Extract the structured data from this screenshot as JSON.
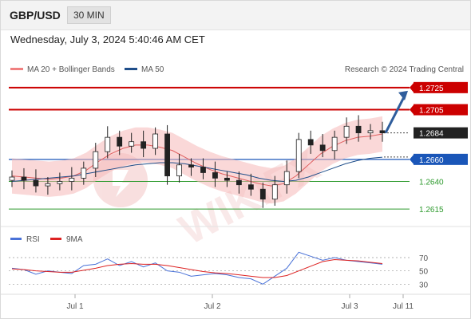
{
  "header": {
    "pair": "GBP/USD",
    "timeframe": "30 MIN"
  },
  "datetime": "Wednesday, July 3, 2024 5:40:46 AM CET",
  "legend": {
    "bollinger": "MA 20 + Bollinger Bands",
    "ma50": "MA 50",
    "copyright": "Research © 2024 Trading Central"
  },
  "watermark": "WIKIFX",
  "colors": {
    "resistance": "#cc0000",
    "support_blue": "#1a56b8",
    "support_green": "#2e9a2e",
    "price": "#222222",
    "bollinger": "#f08080",
    "ma50": "#1f4e8a",
    "rsi": "#4a72d8",
    "rsi_ma": "#dd2222",
    "arrow": "#2f5d9c"
  },
  "chart_data": [
    {
      "type": "line",
      "title": "",
      "ylim": [
        1.2605,
        1.2735
      ],
      "x_ticks": [
        "Jul 1",
        "Jul 2",
        "Jul 3",
        "Jul 11"
      ],
      "levels": [
        {
          "value": 1.2725,
          "label": "1.2725",
          "kind": "resistance"
        },
        {
          "value": 1.2705,
          "label": "1.2705",
          "kind": "resistance"
        },
        {
          "value": 1.2684,
          "label": "1.2684",
          "kind": "last_price"
        },
        {
          "value": 1.266,
          "label": "1.2660",
          "kind": "pivot"
        },
        {
          "value": 1.264,
          "label": "1.2640",
          "kind": "support"
        },
        {
          "value": 1.2615,
          "label": "1.2615",
          "kind": "support"
        }
      ],
      "series": [
        {
          "name": "MA 20 + Bollinger Bands",
          "values": [
            1.2645,
            1.2644,
            1.2643,
            1.2642,
            1.2643,
            1.2645,
            1.265,
            1.2658,
            1.2665,
            1.267,
            1.2673,
            1.2673,
            1.2671,
            1.2668,
            1.2662,
            1.2656,
            1.2651,
            1.2647,
            1.2644,
            1.2641,
            1.2638,
            1.2636,
            1.2638,
            1.2645,
            1.2655,
            1.2665,
            1.2672,
            1.2677,
            1.268,
            1.2681,
            1.2683
          ]
        },
        {
          "name": "MA 50",
          "values": [
            1.264,
            1.2641,
            1.2642,
            1.2643,
            1.2644,
            1.2645,
            1.2647,
            1.2649,
            1.2651,
            1.2653,
            1.2655,
            1.2656,
            1.2657,
            1.2657,
            1.2656,
            1.2654,
            1.2652,
            1.265,
            1.2648,
            1.2646,
            1.2643,
            1.2641,
            1.264,
            1.2641,
            1.2644,
            1.2648,
            1.2652,
            1.2656,
            1.2659,
            1.2661,
            1.2662
          ]
        }
      ],
      "price": [
        1.2644,
        1.2641,
        1.2636,
        1.2638,
        1.264,
        1.2643,
        1.2652,
        1.2667,
        1.268,
        1.2672,
        1.2676,
        1.267,
        1.2683,
        1.2645,
        1.2655,
        1.2653,
        1.2648,
        1.2643,
        1.2641,
        1.2637,
        1.2633,
        1.2624,
        1.2637,
        1.2649,
        1.2678,
        1.2673,
        1.2668,
        1.268,
        1.269,
        1.2684,
        1.2686,
        1.2684
      ],
      "forecast": {
        "from": 1.2684,
        "to": 1.2725
      }
    },
    {
      "type": "line",
      "title": "",
      "ylim": [
        22,
        82
      ],
      "y_ticks": [
        70,
        50,
        30
      ],
      "legend": [
        "RSI",
        "9MA"
      ],
      "series": [
        {
          "name": "RSI",
          "values": [
            54,
            52,
            45,
            50,
            48,
            46,
            58,
            60,
            68,
            58,
            64,
            56,
            62,
            50,
            48,
            42,
            44,
            46,
            44,
            40,
            38,
            30,
            42,
            54,
            78,
            72,
            66,
            70,
            66,
            64,
            62,
            60
          ]
        },
        {
          "name": "9MA",
          "values": [
            53,
            52,
            50,
            49,
            48,
            48,
            51,
            54,
            58,
            60,
            61,
            60,
            60,
            58,
            55,
            52,
            49,
            47,
            46,
            44,
            42,
            40,
            40,
            43,
            50,
            57,
            64,
            67,
            66,
            65,
            63,
            61
          ]
        }
      ]
    }
  ]
}
